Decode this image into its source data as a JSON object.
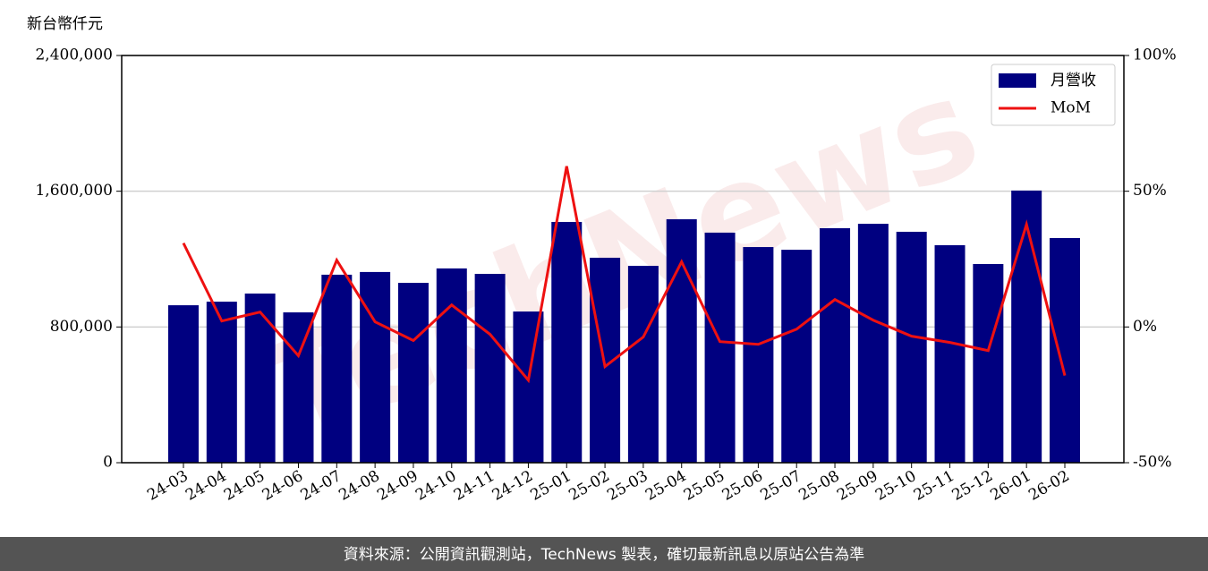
{
  "chart_data": {
    "type": "bar_line",
    "unit_label": "新台幣仟元",
    "watermark": "TechNews",
    "footer": "資料來源：公開資訊觀測站，TechNews 製表，確切最新訊息以原站公告為準",
    "categories": [
      "24-03",
      "24-04",
      "24-05",
      "24-06",
      "24-07",
      "24-08",
      "24-09",
      "24-10",
      "24-11",
      "24-12",
      "25-01",
      "25-02",
      "25-03",
      "25-04",
      "25-05",
      "25-06",
      "25-07",
      "25-08",
      "25-09",
      "25-10",
      "25-11",
      "25-12",
      "26-01",
      "26-02"
    ],
    "series": [
      {
        "name": "月營收",
        "type": "bar",
        "color": "#000080",
        "values": [
          928000,
          949000,
          997000,
          886000,
          1108000,
          1124000,
          1060000,
          1145000,
          1113000,
          891000,
          1419000,
          1208000,
          1160000,
          1435000,
          1356000,
          1271000,
          1255000,
          1382000,
          1408000,
          1361000,
          1282000,
          1171000,
          1604000,
          1324000
        ]
      },
      {
        "name": "MoM",
        "type": "line",
        "axis": "y2",
        "color": "#ee1111",
        "values": [
          30.9,
          2.2,
          5.5,
          -10.6,
          24.6,
          1.9,
          -5.0,
          8.1,
          -2.7,
          -19.6,
          59.2,
          -14.6,
          -3.7,
          24.0,
          -5.4,
          -6.4,
          -0.8,
          10.1,
          2.5,
          -3.4,
          -5.7,
          -8.7,
          37.8,
          -17.9
        ]
      }
    ],
    "ylim": [
      0,
      2400000
    ],
    "yticks": [
      0,
      {
        "value": 800000,
        "label": "800,000"
      },
      {
        "value": 1600000,
        "label": "1,600,000"
      },
      {
        "value": 2400000,
        "label": "2,400,000"
      }
    ],
    "y2lim": [
      -50,
      100
    ],
    "y2ticks": [
      {
        "value": -50,
        "label": "-50%"
      },
      {
        "value": 0,
        "label": "0%"
      },
      {
        "value": 50,
        "label": "50%"
      },
      {
        "value": 100,
        "label": "100%"
      }
    ],
    "grid": true,
    "legend": "upper right"
  }
}
